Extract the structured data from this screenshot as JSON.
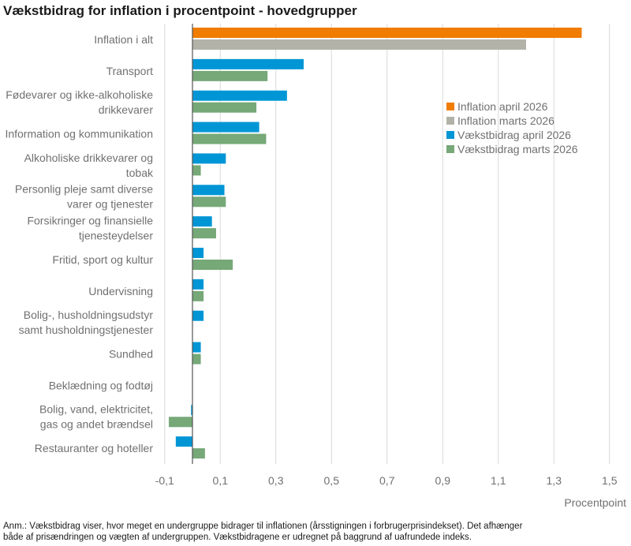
{
  "chart_data": {
    "type": "bar",
    "orientation": "horizontal",
    "title": "Vækstbidrag for inflation i procentpoint - hovedgrupper",
    "xlabel": "Procentpoint",
    "ylabel": "",
    "xlim": [
      -0.1,
      1.5
    ],
    "xticks": [
      -0.1,
      0.1,
      0.3,
      0.5,
      0.7,
      0.9,
      1.1,
      1.3,
      1.5
    ],
    "xtick_labels": [
      "-0,1",
      "0,1",
      "0,3",
      "0,5",
      "0,7",
      "0,9",
      "1,1",
      "1,3",
      "1,5"
    ],
    "grid": "vertical",
    "legend_position": "right",
    "categories": [
      [
        "Inflation i alt"
      ],
      [
        "Transport"
      ],
      [
        "Fødevarer og ikke-alkoholiske",
        "drikkevarer"
      ],
      [
        "Information og kommunikation"
      ],
      [
        "Alkoholiske drikkevarer og",
        "tobak"
      ],
      [
        "Personlig pleje samt diverse",
        "varer og tjenester"
      ],
      [
        "Forsikringer og finansielle",
        "tjenesteydelser"
      ],
      [
        "Fritid, sport og kultur"
      ],
      [
        "Undervisning"
      ],
      [
        "Bolig-, husholdningsudstyr",
        "samt husholdningstjenester"
      ],
      [
        "Sundhed"
      ],
      [
        "Beklædning og fodtøj"
      ],
      [
        "Bolig, vand, elektricitet,",
        "gas og andet brændsel"
      ],
      [
        "Restauranter og hoteller"
      ]
    ],
    "series": [
      {
        "name": "Inflation april 2026",
        "color": "#f07c00",
        "values": [
          1.4,
          null,
          null,
          null,
          null,
          null,
          null,
          null,
          null,
          null,
          null,
          null,
          null,
          null
        ]
      },
      {
        "name": "Inflation marts 2026",
        "color": "#b3b2a8",
        "values": [
          1.2,
          null,
          null,
          null,
          null,
          null,
          null,
          null,
          null,
          null,
          null,
          null,
          null,
          null
        ]
      },
      {
        "name": "Vækstbidrag april 2026",
        "color": "#0096d6",
        "values": [
          null,
          0.4,
          0.34,
          0.24,
          0.12,
          0.115,
          0.07,
          0.04,
          0.04,
          0.04,
          0.03,
          0.0,
          -0.005,
          -0.06
        ]
      },
      {
        "name": "Vækstbidrag marts 2026",
        "color": "#76a878",
        "values": [
          null,
          0.27,
          0.23,
          0.265,
          0.03,
          0.12,
          0.085,
          0.145,
          0.04,
          0.0,
          0.03,
          0.0,
          -0.085,
          0.045
        ]
      }
    ]
  },
  "note": {
    "line1": "Anm.: Vækstbidrag viser, hvor meget en undergruppe bidrager til inflationen (årsstigningen i forbrugerprisindekset). Det afhænger",
    "line2": "både af prisændringen og vægten af undergruppen. Vækstbidragene er udregnet på baggrund af uafrundede indeks."
  }
}
